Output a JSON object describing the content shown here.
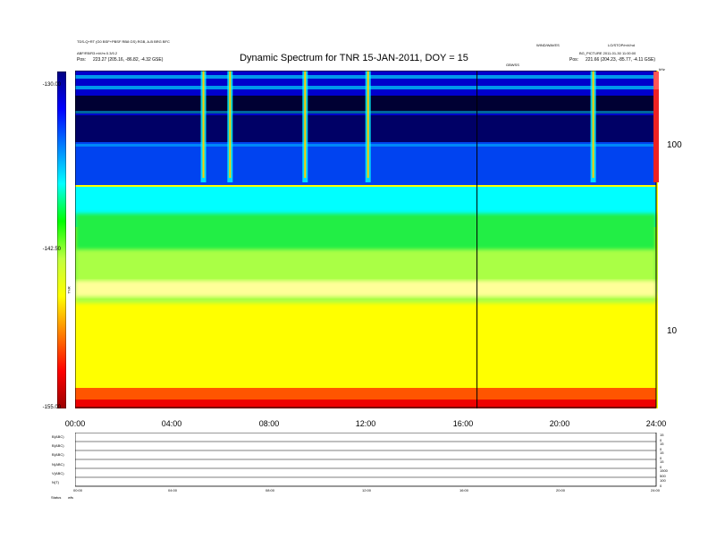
{
  "header": {
    "title": "Dynamic Spectrum for TNR 15-JAN-2011, DOY = 15",
    "left_line1": "TDS-Q+RT (G0 BSF+PBSF RB8 GS) RGB, A-B BRG BFC",
    "left_line2": "ABF/R5/R3 mV/m 0.3/0.2",
    "left_pos_label": "Pos:",
    "left_pos_value": "223.27 (205.16, -86.82, -4.32 GSE)",
    "right_line1": "WIND/WAVES",
    "right_line2": "LO/STOP/mV/nd",
    "right_line3": "BG_PICTURE 2011-01-30 11:00:00",
    "right_pos_label": "Pos:",
    "right_pos_value": "221.66 (204.23, -85.77, -4.11 GSE)",
    "center_note": "GBWSS",
    "right_corner": "kHz"
  },
  "colorbar": {
    "unit_label": "TNR",
    "tick_labels": [
      "-130.00",
      "-142.50",
      "-155.00"
    ],
    "stops": [
      "#9a0000",
      "#ff0000",
      "#ff8000",
      "#ffff00",
      "#c0ff40",
      "#00ff00",
      "#00ffff",
      "#0080ff",
      "#0000ff",
      "#000080"
    ]
  },
  "chart_data": {
    "type": "heatmap",
    "title": "Dynamic Spectrum for TNR 15-JAN-2011, DOY = 15",
    "xlabel": "",
    "ylabel": "",
    "x_tick_labels": [
      "00:00",
      "04:00",
      "08:00",
      "12:00",
      "16:00",
      "20:00",
      "24:00"
    ],
    "x_range_hours": [
      0,
      24
    ],
    "y_scale": "log",
    "y_tick_values": [
      100,
      10
    ],
    "y_range_khz": [
      4,
      256
    ],
    "colorbar_range": [
      -155.0,
      -130.0
    ],
    "marker_line_hour": 16.6,
    "bursts_hours": [
      5.3,
      6.4,
      9.5,
      12.1,
      21.4
    ],
    "band_boundary_khz": 70
  },
  "bottom_panel": {
    "row_labels": [
      "B(ABC)",
      "B(ABC)",
      "B(ABC)",
      "N(ABC)",
      "V(ABC)",
      "N(T)"
    ],
    "right_scale_labels": [
      "15",
      "0",
      "15",
      "0",
      "15",
      "0",
      "15",
      "0",
      "1500",
      "500",
      "100",
      "0"
    ],
    "x_tick_labels": [
      "00:00",
      "04:00",
      "08:00",
      "12:00",
      "16:00",
      "20:00",
      "24:00"
    ],
    "status_label": "Status",
    "status_value": "wfs"
  }
}
